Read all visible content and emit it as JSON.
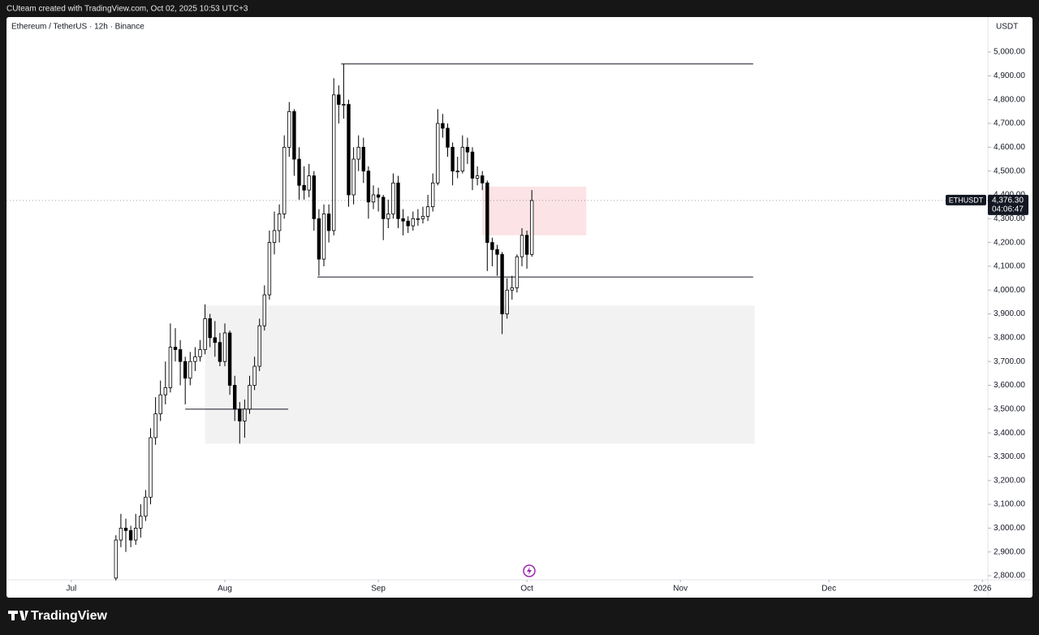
{
  "header": {
    "text": "CUteam created with TradingView.com, Oct 02, 2025 10:53 UTC+3"
  },
  "footer": {
    "brand": "TradingView"
  },
  "chart_data": {
    "type": "candlestick",
    "title": "Ethereum / TetherUS · 12h · Binance",
    "y_unit": "USDT",
    "up_color": "#ffffff",
    "down_color": "#000000",
    "wick_color": "#000000",
    "xlim": [
      -13.1,
      185.1
    ],
    "xticks": [
      {
        "value": 0,
        "label": "Jul"
      },
      {
        "value": 31,
        "label": "Aug"
      },
      {
        "value": 62,
        "label": "Sep"
      },
      {
        "value": 92,
        "label": "Oct"
      },
      {
        "value": 123,
        "label": "Nov"
      },
      {
        "value": 153,
        "label": "Dec"
      },
      {
        "value": 184,
        "label": "2026"
      }
    ],
    "ylim": [
      2783,
      5147
    ],
    "yticks": [
      {
        "value": 2800,
        "label": "2,800.00"
      },
      {
        "value": 2900,
        "label": "2,900.00"
      },
      {
        "value": 3000,
        "label": "3,000.00"
      },
      {
        "value": 3100,
        "label": "3,100.00"
      },
      {
        "value": 3200,
        "label": "3,200.00"
      },
      {
        "value": 3300,
        "label": "3,300.00"
      },
      {
        "value": 3400,
        "label": "3,400.00"
      },
      {
        "value": 3500,
        "label": "3,500.00"
      },
      {
        "value": 3600,
        "label": "3,600.00"
      },
      {
        "value": 3700,
        "label": "3,700.00"
      },
      {
        "value": 3800,
        "label": "3,800.00"
      },
      {
        "value": 3900,
        "label": "3,900.00"
      },
      {
        "value": 4000,
        "label": "4,000.00"
      },
      {
        "value": 4100,
        "label": "4,100.00"
      },
      {
        "value": 4200,
        "label": "4,200.00"
      },
      {
        "value": 4300,
        "label": "4,300.00"
      },
      {
        "value": 4400,
        "label": "4,400.00"
      },
      {
        "value": 4500,
        "label": "4,500.00"
      },
      {
        "value": 4600,
        "label": "4,600.00"
      },
      {
        "value": 4700,
        "label": "4,700.00"
      },
      {
        "value": 4800,
        "label": "4,800.00"
      },
      {
        "value": 4900,
        "label": "4,900.00"
      },
      {
        "value": 5000,
        "label": "5,000.00"
      }
    ],
    "x": [
      9,
      10,
      11,
      12,
      13,
      14,
      15,
      16,
      17,
      18,
      19,
      20,
      21,
      22,
      23,
      24,
      25,
      26,
      27,
      28,
      29,
      30,
      31,
      32,
      33,
      34,
      35,
      36,
      37,
      38,
      39,
      40,
      41,
      42,
      43,
      44,
      45,
      46,
      47,
      48,
      49,
      50,
      51,
      52,
      53,
      54,
      55,
      56,
      57,
      58,
      59,
      60,
      61,
      62,
      63,
      64,
      65,
      66,
      67,
      68,
      69,
      70,
      71,
      72,
      73,
      74,
      75,
      76,
      77,
      78,
      79,
      80,
      81,
      82,
      83,
      84,
      85,
      86,
      87,
      88,
      89,
      90,
      91,
      92,
      93
    ],
    "open": [
      2790,
      2950,
      3000,
      2990,
      2950,
      3000,
      3050,
      3130,
      3380,
      3480,
      3560,
      3590,
      3760,
      3750,
      3700,
      3630,
      3700,
      3720,
      3750,
      3880,
      3800,
      3780,
      3700,
      3820,
      3600,
      3500,
      3450,
      3500,
      3600,
      3680,
      3850,
      3980,
      4200,
      4250,
      4320,
      4600,
      4750,
      4550,
      4440,
      4420,
      4480,
      4300,
      4130,
      4320,
      4250,
      4820,
      4780,
      4780,
      4400,
      4550,
      4600,
      4500,
      4370,
      4400,
      4390,
      4300,
      4320,
      4450,
      4300,
      4290,
      4270,
      4300,
      4300,
      4310,
      4350,
      4450,
      4700,
      4680,
      4600,
      4500,
      4500,
      4600,
      4580,
      4470,
      4480,
      4450,
      4200,
      4170,
      4150,
      3900,
      4000,
      4010,
      4140,
      4230,
      4150
    ],
    "high": [
      2970,
      3060,
      3040,
      3010,
      3060,
      3100,
      3160,
      3420,
      3550,
      3620,
      3700,
      3860,
      3840,
      3790,
      3720,
      3740,
      3760,
      3790,
      3940,
      3900,
      3870,
      3820,
      3860,
      3830,
      3640,
      3530,
      3540,
      3640,
      3720,
      3880,
      4020,
      4250,
      4330,
      4360,
      4650,
      4790,
      4760,
      4600,
      4520,
      4530,
      4500,
      4340,
      4360,
      4360,
      4890,
      4860,
      4950,
      4800,
      4600,
      4650,
      4640,
      4520,
      4440,
      4430,
      4400,
      4380,
      4490,
      4480,
      4340,
      4310,
      4330,
      4340,
      4350,
      4400,
      4490,
      4760,
      4740,
      4700,
      4620,
      4560,
      4650,
      4640,
      4600,
      4520,
      4500,
      4460,
      4220,
      4190,
      4160,
      4050,
      4060,
      4150,
      4260,
      4250,
      4420
    ],
    "low": [
      2780,
      2920,
      2900,
      2920,
      2930,
      2960,
      3030,
      3100,
      3350,
      3450,
      3520,
      3570,
      3700,
      3600,
      3520,
      3600,
      3660,
      3700,
      3730,
      3760,
      3720,
      3680,
      3680,
      3560,
      3450,
      3355,
      3380,
      3480,
      3580,
      3660,
      3830,
      3960,
      4150,
      4200,
      4300,
      4560,
      4480,
      4380,
      4380,
      4390,
      4250,
      4060,
      4100,
      4200,
      4230,
      4700,
      4720,
      4350,
      4360,
      4500,
      4450,
      4300,
      4340,
      4330,
      4210,
      4260,
      4300,
      4260,
      4230,
      4240,
      4250,
      4270,
      4280,
      4290,
      4330,
      4440,
      4640,
      4560,
      4440,
      4470,
      4490,
      4530,
      4420,
      4440,
      4420,
      4080,
      4100,
      4060,
      3815,
      3880,
      3960,
      3990,
      4100,
      4090,
      4140
    ],
    "close": [
      2950,
      3000,
      2990,
      2950,
      3000,
      3050,
      3130,
      3380,
      3480,
      3560,
      3590,
      3760,
      3750,
      3700,
      3630,
      3700,
      3720,
      3750,
      3880,
      3800,
      3780,
      3700,
      3820,
      3600,
      3500,
      3450,
      3500,
      3600,
      3680,
      3850,
      3980,
      4200,
      4250,
      4320,
      4600,
      4750,
      4550,
      4440,
      4420,
      4480,
      4300,
      4130,
      4320,
      4250,
      4820,
      4780,
      4780,
      4400,
      4550,
      4600,
      4500,
      4370,
      4400,
      4390,
      4300,
      4320,
      4450,
      4300,
      4290,
      4270,
      4300,
      4300,
      4310,
      4350,
      4450,
      4700,
      4680,
      4600,
      4500,
      4500,
      4600,
      4580,
      4470,
      4480,
      4450,
      4200,
      4170,
      4150,
      3900,
      4000,
      4010,
      4140,
      4230,
      4150,
      4376.3
    ],
    "zones": [
      {
        "x": [
          27,
          138
        ],
        "y": [
          3355,
          3935
        ],
        "color": "#f2f2f2"
      },
      {
        "x": [
          83,
          104
        ],
        "y": [
          4230,
          4435
        ],
        "color": "#fce4e6"
      }
    ],
    "levels": [
      {
        "x": [
          54.5,
          137.7
        ],
        "value": 4950
      },
      {
        "x": [
          49.7,
          137.7
        ],
        "value": 4055
      },
      {
        "x": [
          23,
          43.8
        ],
        "value": 3500
      }
    ],
    "last_price": {
      "symbol": "ETHUSDT",
      "value": 4376.3,
      "label": "4,376.30",
      "countdown": "04:06:47"
    }
  }
}
